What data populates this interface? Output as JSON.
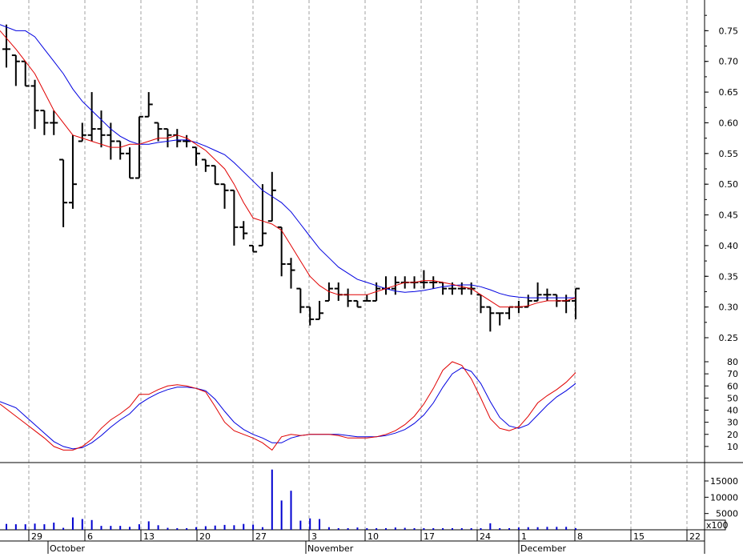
{
  "chart_data": {
    "type": "ohlc",
    "x_day_labels": [
      "29",
      "6",
      "13",
      "20",
      "27",
      "3",
      "10",
      "17",
      "24",
      "1",
      "8",
      "15",
      "22"
    ],
    "x_month_labels": [
      "October",
      "November",
      "December"
    ],
    "x_unit_label": "x100",
    "price_panel": {
      "ylim": [
        0.22,
        0.8
      ],
      "ticks": [
        "0.75",
        "0.70",
        "0.65",
        "0.60",
        "0.55",
        "0.50",
        "0.45",
        "0.40",
        "0.35",
        "0.30",
        "0.25"
      ],
      "bars": [
        {
          "h": 0.76,
          "l": 0.69,
          "c": 0.72
        },
        {
          "h": 0.71,
          "l": 0.66,
          "c": 0.7
        },
        {
          "h": 0.7,
          "l": 0.66,
          "c": 0.66
        },
        {
          "h": 0.67,
          "l": 0.59,
          "c": 0.62
        },
        {
          "h": 0.62,
          "l": 0.58,
          "c": 0.6
        },
        {
          "h": 0.62,
          "l": 0.58,
          "c": 0.6
        },
        {
          "h": 0.54,
          "l": 0.43,
          "c": 0.47
        },
        {
          "h": 0.58,
          "l": 0.46,
          "c": 0.5
        },
        {
          "h": 0.6,
          "l": 0.57,
          "c": 0.58
        },
        {
          "h": 0.65,
          "l": 0.57,
          "c": 0.59
        },
        {
          "h": 0.62,
          "l": 0.56,
          "c": 0.58
        },
        {
          "h": 0.6,
          "l": 0.54,
          "c": 0.57
        },
        {
          "h": 0.57,
          "l": 0.54,
          "c": 0.55
        },
        {
          "h": 0.56,
          "l": 0.51,
          "c": 0.51
        },
        {
          "h": 0.61,
          "l": 0.51,
          "c": 0.61
        },
        {
          "h": 0.65,
          "l": 0.61,
          "c": 0.63
        },
        {
          "h": 0.6,
          "l": 0.57,
          "c": 0.59
        },
        {
          "h": 0.59,
          "l": 0.56,
          "c": 0.58
        },
        {
          "h": 0.59,
          "l": 0.56,
          "c": 0.57
        },
        {
          "h": 0.58,
          "l": 0.56,
          "c": 0.57
        },
        {
          "h": 0.56,
          "l": 0.53,
          "c": 0.55
        },
        {
          "h": 0.54,
          "l": 0.52,
          "c": 0.53
        },
        {
          "h": 0.53,
          "l": 0.5,
          "c": 0.5
        },
        {
          "h": 0.5,
          "l": 0.46,
          "c": 0.49
        },
        {
          "h": 0.49,
          "l": 0.4,
          "c": 0.43
        },
        {
          "h": 0.44,
          "l": 0.41,
          "c": 0.42
        },
        {
          "h": 0.4,
          "l": 0.39,
          "c": 0.39
        },
        {
          "h": 0.5,
          "l": 0.4,
          "c": 0.42
        },
        {
          "h": 0.52,
          "l": 0.44,
          "c": 0.49
        },
        {
          "h": 0.43,
          "l": 0.35,
          "c": 0.37
        },
        {
          "h": 0.38,
          "l": 0.33,
          "c": 0.36
        },
        {
          "h": 0.33,
          "l": 0.29,
          "c": 0.3
        },
        {
          "h": 0.3,
          "l": 0.27,
          "c": 0.28
        },
        {
          "h": 0.31,
          "l": 0.28,
          "c": 0.29
        },
        {
          "h": 0.34,
          "l": 0.31,
          "c": 0.33
        },
        {
          "h": 0.34,
          "l": 0.31,
          "c": 0.32
        },
        {
          "h": 0.33,
          "l": 0.3,
          "c": 0.31
        },
        {
          "h": 0.31,
          "l": 0.3,
          "c": 0.3
        },
        {
          "h": 0.32,
          "l": 0.31,
          "c": 0.31
        },
        {
          "h": 0.34,
          "l": 0.31,
          "c": 0.33
        },
        {
          "h": 0.35,
          "l": 0.32,
          "c": 0.33
        },
        {
          "h": 0.35,
          "l": 0.32,
          "c": 0.34
        },
        {
          "h": 0.35,
          "l": 0.33,
          "c": 0.34
        },
        {
          "h": 0.35,
          "l": 0.33,
          "c": 0.34
        },
        {
          "h": 0.36,
          "l": 0.33,
          "c": 0.34
        },
        {
          "h": 0.35,
          "l": 0.33,
          "c": 0.34
        },
        {
          "h": 0.34,
          "l": 0.32,
          "c": 0.33
        },
        {
          "h": 0.34,
          "l": 0.32,
          "c": 0.33
        },
        {
          "h": 0.34,
          "l": 0.32,
          "c": 0.33
        },
        {
          "h": 0.34,
          "l": 0.32,
          "c": 0.33
        },
        {
          "h": 0.32,
          "l": 0.29,
          "c": 0.3
        },
        {
          "h": 0.3,
          "l": 0.26,
          "c": 0.29
        },
        {
          "h": 0.29,
          "l": 0.27,
          "c": 0.29
        },
        {
          "h": 0.3,
          "l": 0.28,
          "c": 0.3
        },
        {
          "h": 0.31,
          "l": 0.29,
          "c": 0.3
        },
        {
          "h": 0.32,
          "l": 0.3,
          "c": 0.31
        },
        {
          "h": 0.34,
          "l": 0.31,
          "c": 0.32
        },
        {
          "h": 0.33,
          "l": 0.31,
          "c": 0.32
        },
        {
          "h": 0.32,
          "l": 0.3,
          "c": 0.31
        },
        {
          "h": 0.32,
          "l": 0.29,
          "c": 0.31
        },
        {
          "h": 0.33,
          "l": 0.28,
          "c": 0.33
        }
      ],
      "ma_fast": [
        0.75,
        0.72,
        0.7,
        0.68,
        0.65,
        0.62,
        0.6,
        0.58,
        0.575,
        0.57,
        0.565,
        0.56,
        0.56,
        0.565,
        0.565,
        0.57,
        0.575,
        0.575,
        0.58,
        0.575,
        0.565,
        0.555,
        0.54,
        0.525,
        0.5,
        0.47,
        0.445,
        0.44,
        0.435,
        0.425,
        0.4,
        0.375,
        0.35,
        0.335,
        0.325,
        0.32,
        0.32,
        0.32,
        0.32,
        0.325,
        0.33,
        0.335,
        0.34,
        0.34,
        0.343,
        0.343,
        0.34,
        0.337,
        0.333,
        0.33,
        0.32,
        0.31,
        0.3,
        0.3,
        0.3,
        0.302,
        0.307,
        0.31,
        0.31,
        0.31,
        0.315
      ],
      "ma_slow": [
        0.76,
        0.75,
        0.75,
        0.74,
        0.72,
        0.7,
        0.68,
        0.655,
        0.635,
        0.62,
        0.605,
        0.59,
        0.578,
        0.57,
        0.565,
        0.565,
        0.568,
        0.57,
        0.572,
        0.572,
        0.568,
        0.562,
        0.555,
        0.548,
        0.535,
        0.52,
        0.505,
        0.49,
        0.48,
        0.47,
        0.455,
        0.435,
        0.415,
        0.395,
        0.38,
        0.365,
        0.355,
        0.345,
        0.34,
        0.335,
        0.33,
        0.326,
        0.324,
        0.325,
        0.327,
        0.33,
        0.333,
        0.335,
        0.336,
        0.336,
        0.333,
        0.328,
        0.322,
        0.318,
        0.316,
        0.315,
        0.315,
        0.315,
        0.315,
        0.315,
        0.315
      ]
    },
    "oscillator_panel": {
      "ylim": [
        0,
        85
      ],
      "ticks": [
        "80",
        "70",
        "60",
        "50",
        "40",
        "30",
        "20",
        "10"
      ],
      "fast": [
        45,
        35,
        29,
        23,
        17,
        10,
        7,
        7,
        10,
        16,
        25,
        32,
        37,
        43,
        53,
        53,
        57,
        60,
        61,
        60,
        58,
        55,
        43,
        30,
        23,
        20,
        17,
        13,
        7,
        18,
        20,
        19,
        20,
        20,
        20,
        19,
        17,
        17,
        17,
        18,
        20,
        23,
        28,
        35,
        45,
        58,
        73,
        80,
        77,
        66,
        50,
        33,
        25,
        23,
        26,
        35,
        46,
        52,
        57,
        63,
        71
      ],
      "slow": [
        47,
        42,
        35,
        28,
        21,
        14,
        10,
        8,
        9,
        13,
        19,
        26,
        32,
        37,
        45,
        50,
        54,
        57,
        59,
        59,
        58,
        56,
        49,
        39,
        30,
        24,
        20,
        17,
        13,
        13,
        17,
        19,
        20,
        20,
        20,
        20,
        19,
        18,
        18,
        18,
        19,
        21,
        24,
        29,
        36,
        46,
        59,
        70,
        75,
        72,
        62,
        47,
        34,
        27,
        25,
        28,
        36,
        44,
        51,
        56,
        62
      ]
    },
    "volume_panel": {
      "ylim": [
        0,
        20000
      ],
      "ticks": [
        "15000",
        "10000",
        "5000"
      ],
      "values": [
        1800,
        1700,
        1700,
        1900,
        1700,
        2200,
        600,
        3800,
        3300,
        3000,
        1200,
        1200,
        1200,
        900,
        1700,
        2600,
        1400,
        600,
        500,
        500,
        800,
        1100,
        1300,
        1500,
        1400,
        1800,
        1600,
        800,
        18500,
        9000,
        12000,
        2800,
        3500,
        3300,
        800,
        500,
        500,
        700,
        500,
        500,
        500,
        700,
        600,
        500,
        500,
        500,
        500,
        500,
        500,
        500,
        500,
        2000,
        500,
        500,
        700,
        800,
        800,
        900,
        900,
        900,
        500
      ]
    },
    "colors": {
      "price_bars": "#000000",
      "fast_line": "#e00000",
      "slow_line": "#0000e0",
      "volume": "#0000d0",
      "grid": "#a0a0a0"
    }
  }
}
